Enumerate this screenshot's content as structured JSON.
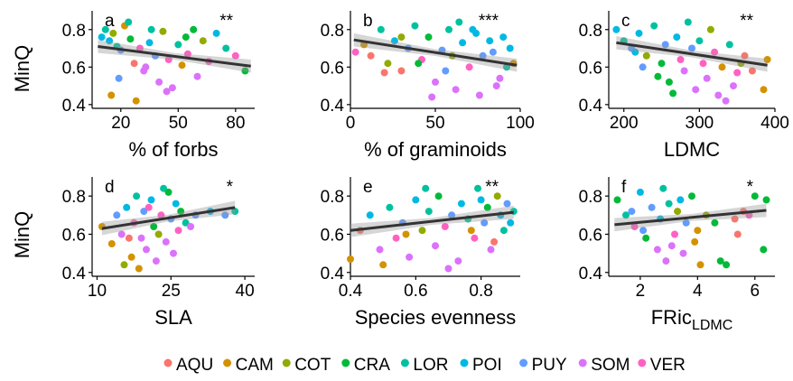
{
  "ylabel": "MinQ",
  "legend": {
    "position": "bottom",
    "items": [
      {
        "name": "AQU",
        "color": "#F8766D"
      },
      {
        "name": "CAM",
        "color": "#D39200"
      },
      {
        "name": "COT",
        "color": "#93AA00"
      },
      {
        "name": "CRA",
        "color": "#00BA38"
      },
      {
        "name": "LOR",
        "color": "#00C19F"
      },
      {
        "name": "POI",
        "color": "#00B9E3"
      },
      {
        "name": "PUY",
        "color": "#619CFF"
      },
      {
        "name": "SOM",
        "color": "#DB72FB"
      },
      {
        "name": "VER",
        "color": "#FF61C3"
      }
    ]
  },
  "chart_data": [
    {
      "panel": "a",
      "type": "scatter",
      "xlabel": "% of forbs",
      "ylabel": "MinQ",
      "significance": "**",
      "xlim": [
        5,
        90
      ],
      "ylim": [
        0.38,
        0.9
      ],
      "xticks": [
        20,
        50,
        80
      ],
      "yticks": [
        0.4,
        0.6,
        0.8
      ],
      "trend": {
        "x": [
          8,
          88
        ],
        "y": [
          0.71,
          0.605
        ]
      },
      "points": [
        [
          10,
          0.76,
          5
        ],
        [
          12,
          0.8,
          4
        ],
        [
          14,
          0.74,
          5
        ],
        [
          16,
          0.78,
          2
        ],
        [
          18,
          0.71,
          4
        ],
        [
          20,
          0.69,
          6
        ],
        [
          22,
          0.82,
          1
        ],
        [
          25,
          0.75,
          3
        ],
        [
          27,
          0.62,
          0
        ],
        [
          30,
          0.7,
          8
        ],
        [
          32,
          0.58,
          7
        ],
        [
          35,
          0.73,
          5
        ],
        [
          38,
          0.66,
          6
        ],
        [
          40,
          0.52,
          7
        ],
        [
          42,
          0.79,
          2
        ],
        [
          45,
          0.64,
          8
        ],
        [
          47,
          0.49,
          7
        ],
        [
          50,
          0.72,
          4
        ],
        [
          52,
          0.61,
          1
        ],
        [
          55,
          0.67,
          8
        ],
        [
          58,
          0.8,
          3
        ],
        [
          60,
          0.55,
          7
        ],
        [
          63,
          0.74,
          2
        ],
        [
          66,
          0.63,
          8
        ],
        [
          70,
          0.78,
          5
        ],
        [
          75,
          0.7,
          4
        ],
        [
          80,
          0.66,
          8
        ],
        [
          85,
          0.58,
          3
        ],
        [
          15,
          0.45,
          1
        ],
        [
          28,
          0.42,
          1
        ],
        [
          24,
          0.84,
          4
        ],
        [
          36,
          0.8,
          4
        ],
        [
          44,
          0.47,
          7
        ],
        [
          54,
          0.76,
          3
        ],
        [
          19,
          0.54,
          6
        ],
        [
          33,
          0.6,
          7
        ]
      ]
    },
    {
      "panel": "b",
      "type": "scatter",
      "xlabel": "% of graminoids",
      "ylabel": "MinQ",
      "significance": "***",
      "xlim": [
        0,
        100
      ],
      "ylim": [
        0.38,
        0.9
      ],
      "xticks": [
        0,
        50,
        100
      ],
      "yticks": [
        0.4,
        0.6,
        0.8
      ],
      "trend": {
        "x": [
          2,
          98
        ],
        "y": [
          0.745,
          0.61
        ]
      },
      "points": [
        [
          3,
          0.68,
          8
        ],
        [
          8,
          0.72,
          1
        ],
        [
          12,
          0.66,
          0
        ],
        [
          18,
          0.8,
          4
        ],
        [
          22,
          0.62,
          2
        ],
        [
          26,
          0.74,
          5
        ],
        [
          30,
          0.58,
          0
        ],
        [
          34,
          0.7,
          6
        ],
        [
          38,
          0.82,
          4
        ],
        [
          42,
          0.64,
          8
        ],
        [
          46,
          0.76,
          3
        ],
        [
          50,
          0.52,
          7
        ],
        [
          54,
          0.69,
          6
        ],
        [
          58,
          0.8,
          4
        ],
        [
          62,
          0.48,
          7
        ],
        [
          66,
          0.73,
          5
        ],
        [
          70,
          0.6,
          8
        ],
        [
          74,
          0.78,
          5
        ],
        [
          78,
          0.66,
          6
        ],
        [
          82,
          0.74,
          5
        ],
        [
          86,
          0.5,
          7
        ],
        [
          90,
          0.76,
          5
        ],
        [
          94,
          0.7,
          5
        ],
        [
          96,
          0.62,
          1
        ],
        [
          20,
          0.57,
          0
        ],
        [
          48,
          0.44,
          7
        ],
        [
          56,
          0.58,
          6
        ],
        [
          76,
          0.45,
          7
        ],
        [
          88,
          0.54,
          7
        ],
        [
          40,
          0.62,
          3
        ],
        [
          64,
          0.84,
          4
        ],
        [
          72,
          0.8,
          5
        ],
        [
          84,
          0.68,
          6
        ],
        [
          92,
          0.6,
          4
        ],
        [
          30,
          0.76,
          2
        ],
        [
          60,
          0.66,
          2
        ]
      ]
    },
    {
      "panel": "c",
      "type": "scatter",
      "xlabel": "LDMC",
      "ylabel": "MinQ",
      "significance": "**",
      "xlim": [
        180,
        400
      ],
      "ylim": [
        0.38,
        0.9
      ],
      "xticks": [
        200,
        300,
        400
      ],
      "yticks": [
        0.4,
        0.6,
        0.8
      ],
      "trend": {
        "x": [
          190,
          390
        ],
        "y": [
          0.73,
          0.61
        ]
      },
      "points": [
        [
          190,
          0.8,
          5
        ],
        [
          200,
          0.74,
          4
        ],
        [
          210,
          0.7,
          6
        ],
        [
          220,
          0.78,
          5
        ],
        [
          230,
          0.66,
          2
        ],
        [
          240,
          0.82,
          4
        ],
        [
          250,
          0.62,
          3
        ],
        [
          255,
          0.72,
          6
        ],
        [
          260,
          0.52,
          3
        ],
        [
          270,
          0.76,
          5
        ],
        [
          275,
          0.64,
          8
        ],
        [
          280,
          0.58,
          7
        ],
        [
          290,
          0.7,
          6
        ],
        [
          295,
          0.48,
          7
        ],
        [
          300,
          0.74,
          4
        ],
        [
          305,
          0.62,
          8
        ],
        [
          310,
          0.54,
          7
        ],
        [
          320,
          0.68,
          8
        ],
        [
          325,
          0.45,
          7
        ],
        [
          330,
          0.6,
          1
        ],
        [
          340,
          0.72,
          4
        ],
        [
          345,
          0.5,
          7
        ],
        [
          350,
          0.57,
          8
        ],
        [
          360,
          0.66,
          0
        ],
        [
          370,
          0.58,
          0
        ],
        [
          385,
          0.48,
          1
        ],
        [
          390,
          0.64,
          1
        ],
        [
          245,
          0.55,
          3
        ],
        [
          265,
          0.46,
          3
        ],
        [
          315,
          0.8,
          2
        ],
        [
          225,
          0.6,
          6
        ],
        [
          285,
          0.84,
          4
        ],
        [
          335,
          0.42,
          7
        ],
        [
          215,
          0.68,
          5
        ],
        [
          355,
          0.62,
          2
        ]
      ]
    },
    {
      "panel": "d",
      "type": "scatter",
      "xlabel": "SLA",
      "ylabel": "MinQ",
      "significance": "*",
      "xlim": [
        9,
        42
      ],
      "ylim": [
        0.38,
        0.9
      ],
      "xticks": [
        10,
        25,
        40
      ],
      "yticks": [
        0.4,
        0.6,
        0.8
      ],
      "trend": {
        "x": [
          11,
          38
        ],
        "y": [
          0.63,
          0.74
        ]
      },
      "points": [
        [
          11,
          0.64,
          1
        ],
        [
          13,
          0.55,
          1
        ],
        [
          14,
          0.7,
          6
        ],
        [
          15,
          0.6,
          7
        ],
        [
          16,
          0.74,
          5
        ],
        [
          17,
          0.48,
          1
        ],
        [
          17.5,
          0.66,
          8
        ],
        [
          18,
          0.8,
          4
        ],
        [
          19,
          0.58,
          7
        ],
        [
          19.5,
          0.72,
          6
        ],
        [
          20,
          0.52,
          7
        ],
        [
          21,
          0.78,
          5
        ],
        [
          21.5,
          0.64,
          3
        ],
        [
          22,
          0.46,
          7
        ],
        [
          23,
          0.7,
          8
        ],
        [
          23.5,
          0.84,
          4
        ],
        [
          24,
          0.56,
          7
        ],
        [
          25,
          0.68,
          6
        ],
        [
          26,
          0.76,
          5
        ],
        [
          26.5,
          0.62,
          8
        ],
        [
          27,
          0.72,
          3
        ],
        [
          28,
          0.66,
          4
        ],
        [
          30,
          0.7,
          6
        ],
        [
          33,
          0.72,
          5
        ],
        [
          36,
          0.7,
          6
        ],
        [
          38,
          0.72,
          4
        ],
        [
          15.5,
          0.44,
          2
        ],
        [
          18.5,
          0.42,
          1
        ],
        [
          22.5,
          0.6,
          2
        ],
        [
          24.5,
          0.82,
          3
        ],
        [
          20.5,
          0.74,
          8
        ],
        [
          25.5,
          0.5,
          7
        ],
        [
          16.5,
          0.58,
          0
        ],
        [
          29,
          0.64,
          7
        ]
      ]
    },
    {
      "panel": "e",
      "type": "scatter",
      "xlabel": "Species evenness",
      "ylabel": "MinQ",
      "significance": "**",
      "xlim": [
        0.4,
        0.92
      ],
      "ylim": [
        0.38,
        0.9
      ],
      "xticks": [
        0.4,
        0.6,
        0.8
      ],
      "yticks": [
        0.4,
        0.6,
        0.8
      ],
      "trend": {
        "x": [
          0.4,
          0.9
        ],
        "y": [
          0.62,
          0.715
        ]
      },
      "points": [
        [
          0.4,
          0.47,
          1
        ],
        [
          0.43,
          0.62,
          0
        ],
        [
          0.46,
          0.7,
          5
        ],
        [
          0.49,
          0.52,
          7
        ],
        [
          0.52,
          0.74,
          4
        ],
        [
          0.54,
          0.58,
          8
        ],
        [
          0.56,
          0.66,
          6
        ],
        [
          0.58,
          0.48,
          7
        ],
        [
          0.6,
          0.78,
          5
        ],
        [
          0.62,
          0.62,
          2
        ],
        [
          0.64,
          0.72,
          4
        ],
        [
          0.66,
          0.54,
          7
        ],
        [
          0.67,
          0.8,
          3
        ],
        [
          0.69,
          0.64,
          8
        ],
        [
          0.71,
          0.7,
          6
        ],
        [
          0.73,
          0.46,
          7
        ],
        [
          0.74,
          0.76,
          5
        ],
        [
          0.76,
          0.68,
          4
        ],
        [
          0.78,
          0.58,
          8
        ],
        [
          0.79,
          0.84,
          4
        ],
        [
          0.81,
          0.66,
          6
        ],
        [
          0.82,
          0.74,
          3
        ],
        [
          0.83,
          0.52,
          7
        ],
        [
          0.85,
          0.8,
          2
        ],
        [
          0.86,
          0.7,
          5
        ],
        [
          0.87,
          0.62,
          4
        ],
        [
          0.88,
          0.76,
          6
        ],
        [
          0.89,
          0.66,
          5
        ],
        [
          0.9,
          0.72,
          4
        ],
        [
          0.5,
          0.44,
          1
        ],
        [
          0.57,
          0.6,
          1
        ],
        [
          0.7,
          0.42,
          7
        ],
        [
          0.77,
          0.62,
          1
        ],
        [
          0.84,
          0.56,
          0
        ],
        [
          0.63,
          0.84,
          4
        ],
        [
          0.8,
          0.78,
          5
        ]
      ]
    },
    {
      "panel": "f",
      "type": "scatter",
      "xlabel": "FRic",
      "xlabel_sub": "LDMC",
      "ylabel": "MinQ",
      "significance": "*",
      "xlim": [
        0.9,
        6.7
      ],
      "ylim": [
        0.38,
        0.9
      ],
      "xticks": [
        2,
        4,
        6
      ],
      "yticks": [
        0.4,
        0.6,
        0.8
      ],
      "trend": {
        "x": [
          1.1,
          6.4
        ],
        "y": [
          0.65,
          0.725
        ]
      },
      "points": [
        [
          1.2,
          0.78,
          3
        ],
        [
          1.5,
          0.7,
          4
        ],
        [
          1.8,
          0.64,
          8
        ],
        [
          2.0,
          0.82,
          5
        ],
        [
          2.2,
          0.58,
          3
        ],
        [
          2.4,
          0.74,
          6
        ],
        [
          2.6,
          0.52,
          7
        ],
        [
          2.7,
          0.68,
          5
        ],
        [
          2.9,
          0.46,
          7
        ],
        [
          3.0,
          0.76,
          4
        ],
        [
          3.2,
          0.6,
          8
        ],
        [
          3.3,
          0.72,
          2
        ],
        [
          3.5,
          0.5,
          7
        ],
        [
          3.6,
          0.66,
          6
        ],
        [
          3.8,
          0.8,
          3
        ],
        [
          3.9,
          0.56,
          1
        ],
        [
          4.0,
          0.62,
          1
        ],
        [
          4.1,
          0.44,
          1
        ],
        [
          4.3,
          0.7,
          2
        ],
        [
          4.6,
          0.66,
          3
        ],
        [
          5.0,
          0.44,
          3
        ],
        [
          5.3,
          0.68,
          0
        ],
        [
          5.4,
          0.6,
          0
        ],
        [
          5.6,
          0.72,
          0
        ],
        [
          5.8,
          0.7,
          8
        ],
        [
          6.0,
          0.8,
          3
        ],
        [
          6.3,
          0.52,
          3
        ],
        [
          6.4,
          0.78,
          3
        ],
        [
          2.1,
          0.62,
          6
        ],
        [
          2.8,
          0.84,
          4
        ],
        [
          3.1,
          0.54,
          7
        ],
        [
          3.4,
          0.78,
          5
        ],
        [
          1.7,
          0.72,
          6
        ],
        [
          4.8,
          0.46,
          3
        ]
      ]
    }
  ]
}
